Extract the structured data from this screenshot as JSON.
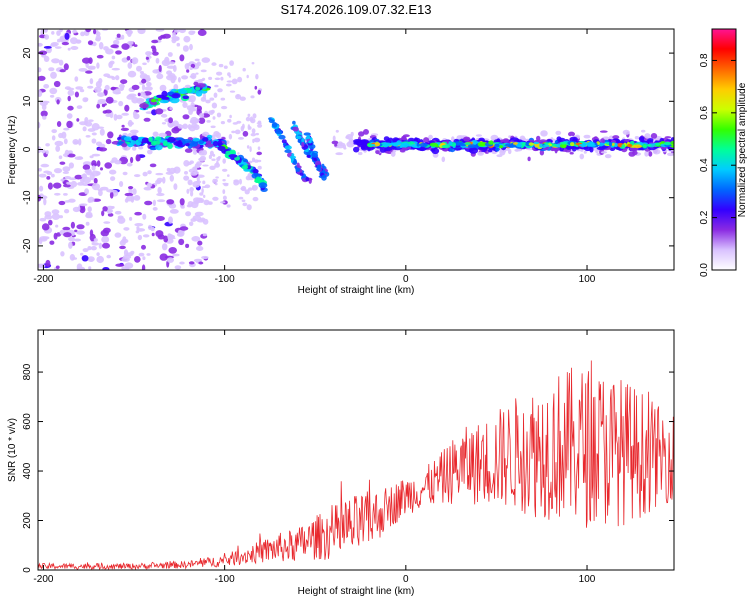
{
  "title": "S174.2026.109.07.32.E13",
  "chart_data": [
    {
      "type": "heatmap",
      "name": "spectrogram",
      "xlabel": "Height of straight line (km)",
      "ylabel": "Frequency (Hz)",
      "xlim": [
        -203,
        148
      ],
      "ylim": [
        -25,
        25
      ],
      "xticks": [
        -200,
        -100,
        0,
        100
      ],
      "yticks": [
        -20,
        -10,
        0,
        10,
        20
      ],
      "xtick_labels": [
        "-200",
        "-100",
        "0",
        "100"
      ],
      "ytick_labels": [
        "-20",
        "-10",
        "0",
        "10",
        "20"
      ],
      "colorbar": {
        "label": "Normalized spectral amplitude",
        "range": [
          0,
          0.92
        ],
        "ticks": [
          0.0,
          0.2,
          0.4,
          0.6,
          0.8
        ],
        "tick_labels": [
          "0.0",
          "0.2",
          "0.4",
          "0.6",
          "0.8"
        ],
        "colormap": [
          "#ffffff",
          "#d9c2ff",
          "#8a2be2",
          "#3300ff",
          "#0066ff",
          "#00ccff",
          "#00ff99",
          "#33ff00",
          "#ccff00",
          "#ffcc00",
          "#ff6600",
          "#ff0000",
          "#ff1493"
        ]
      },
      "features": {
        "noise_region_x": [
          -203,
          -110
        ],
        "upper_track": {
          "x": [
            -145,
            -125,
            -110
          ],
          "y": [
            9,
            11.5,
            13
          ]
        },
        "main_track_x": [
          -20,
          148
        ],
        "main_track_y": 1,
        "descending_track": {
          "x": [
            -105,
            -95,
            -85,
            -78
          ],
          "y": [
            1.5,
            -1.5,
            -4,
            -8
          ]
        },
        "diagonal_tracks": [
          {
            "x": [
              -75,
              -65,
              -58,
              -52
            ],
            "y": [
              7,
              0,
              -5,
              -7
            ]
          },
          {
            "x": [
              -62,
              -55,
              -48,
              -42
            ],
            "y": [
              5,
              0,
              -3,
              -6
            ]
          },
          {
            "x": [
              -55,
              -50,
              -45
            ],
            "y": [
              4,
              -2,
              -6
            ]
          }
        ]
      }
    },
    {
      "type": "line",
      "name": "snr",
      "xlabel": "Height of straight line (km)",
      "ylabel": "SNR (10 * v/v)",
      "xlim": [
        -203,
        148
      ],
      "ylim": [
        0,
        970
      ],
      "xticks": [
        -200,
        -100,
        0,
        100
      ],
      "yticks": [
        0,
        200,
        400,
        600,
        800
      ],
      "xtick_labels": [
        "-200",
        "-100",
        "0",
        "100"
      ],
      "ytick_labels": [
        "0",
        "200",
        "400",
        "600",
        "800"
      ],
      "line_color": "#e8282d",
      "envelope": {
        "x": [
          -203,
          -150,
          -120,
          -100,
          -85,
          -70,
          -60,
          -50,
          -40,
          -30,
          -20,
          -10,
          0,
          10,
          20,
          30,
          40,
          50,
          60,
          70,
          80,
          90,
          100,
          110,
          120,
          130,
          140,
          148
        ],
        "mean": [
          15,
          15,
          22,
          38,
          65,
          90,
          100,
          130,
          150,
          170,
          200,
          250,
          300,
          330,
          370,
          420,
          430,
          450,
          470,
          480,
          500,
          500,
          500,
          490,
          480,
          470,
          460,
          460
        ],
        "amp": [
          12,
          12,
          15,
          25,
          40,
          60,
          70,
          90,
          110,
          130,
          120,
          90,
          80,
          80,
          110,
          150,
          170,
          200,
          230,
          270,
          300,
          320,
          330,
          320,
          300,
          260,
          200,
          180
        ]
      }
    }
  ]
}
